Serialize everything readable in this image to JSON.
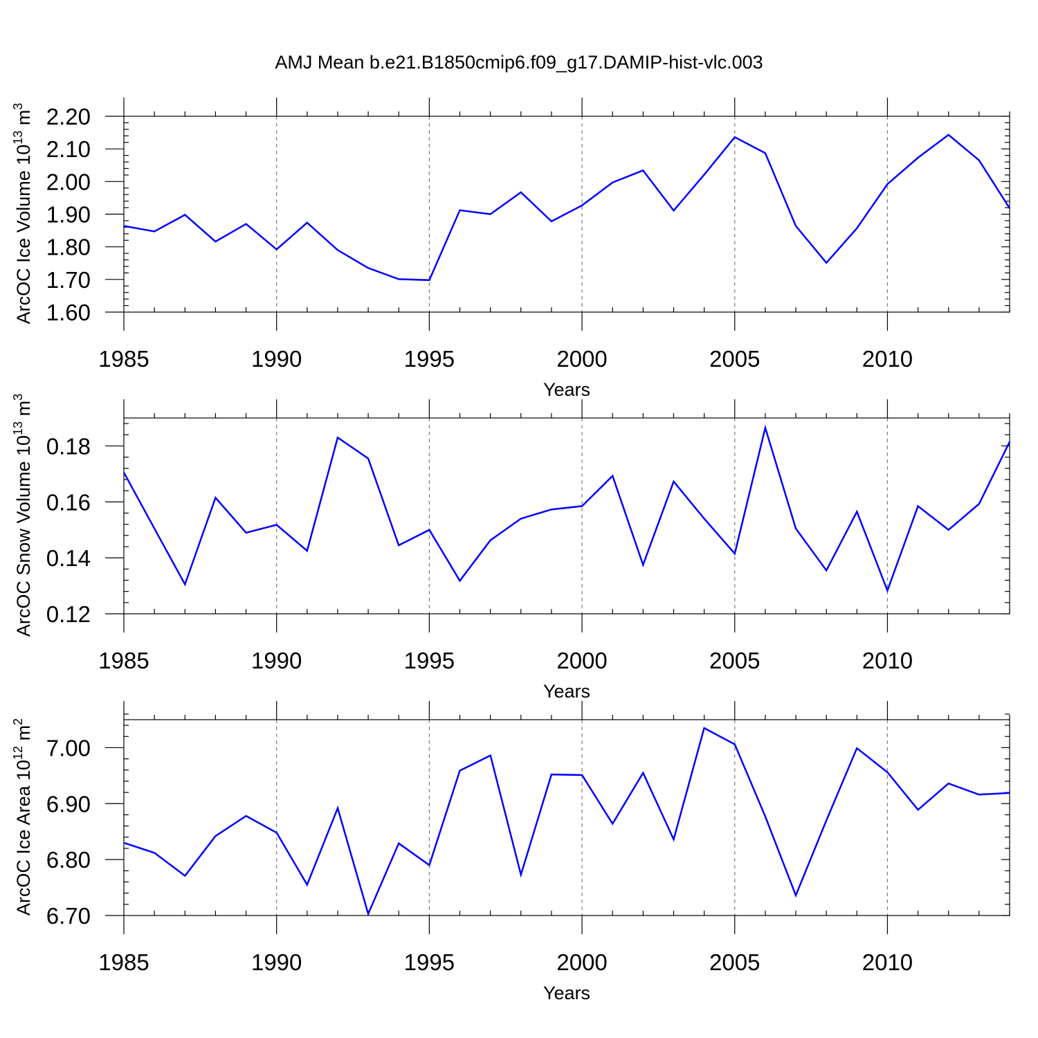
{
  "figure": {
    "title": "AMJ Mean b.e21.B1850cmip6.f09_g17.DAMIP-hist-vlc.003"
  },
  "colors": {
    "line": "#0000ff",
    "frame": "#000000",
    "grid": "#7a7a7a"
  },
  "chart_data": [
    {
      "type": "line",
      "title": "",
      "xlabel": "Years",
      "ylabel": "ArcOC Ice Volume 10",
      "ylabel_exp": "13",
      "ylabel_unit": " m",
      "ylabel_unit_exp": "3",
      "xlim": [
        1985,
        2014
      ],
      "ylim": [
        1.6,
        2.2
      ],
      "xticks": [
        "1985",
        "1990",
        "1995",
        "2000",
        "2005",
        "2010"
      ],
      "xtick_values": [
        1985,
        1990,
        1995,
        2000,
        2005,
        2010
      ],
      "yticks": [
        "1.60",
        "1.70",
        "1.80",
        "1.90",
        "2.00",
        "2.10",
        "2.20"
      ],
      "ytick_values": [
        1.6,
        1.7,
        1.8,
        1.9,
        2.0,
        2.1,
        2.2
      ],
      "grid": "vertical dashed at major x ticks",
      "x": [
        1985,
        1986,
        1987,
        1988,
        1989,
        1990,
        1991,
        1992,
        1993,
        1994,
        1995,
        1996,
        1997,
        1998,
        1999,
        2000,
        2001,
        2002,
        2003,
        2004,
        2005,
        2006,
        2007,
        2008,
        2009,
        2010,
        2011,
        2012,
        2013,
        2014
      ],
      "values": [
        1.864,
        1.847,
        1.898,
        1.816,
        1.87,
        1.792,
        1.874,
        1.79,
        1.735,
        1.701,
        1.698,
        1.912,
        1.9,
        1.967,
        1.878,
        1.927,
        1.997,
        2.034,
        1.911,
        2.021,
        2.136,
        2.087,
        1.864,
        1.751,
        1.857,
        1.992,
        2.073,
        2.143,
        2.065,
        1.918
      ]
    },
    {
      "type": "line",
      "title": "",
      "xlabel": "Years",
      "ylabel": "ArcOC Snow Volume 10",
      "ylabel_exp": "13",
      "ylabel_unit": " m",
      "ylabel_unit_exp": "3",
      "xlim": [
        1985,
        2014
      ],
      "ylim": [
        0.12,
        0.19
      ],
      "xticks": [
        "1985",
        "1990",
        "1995",
        "2000",
        "2005",
        "2010"
      ],
      "xtick_values": [
        1985,
        1990,
        1995,
        2000,
        2005,
        2010
      ],
      "yticks": [
        "0.12",
        "0.14",
        "0.16",
        "0.18"
      ],
      "ytick_values": [
        0.12,
        0.14,
        0.16,
        0.18
      ],
      "grid": "vertical dashed at major x ticks",
      "x": [
        1985,
        1986,
        1987,
        1988,
        1989,
        1990,
        1991,
        1992,
        1993,
        1994,
        1995,
        1996,
        1997,
        1998,
        1999,
        2000,
        2001,
        2002,
        2003,
        2004,
        2005,
        2006,
        2007,
        2008,
        2009,
        2010,
        2011,
        2012,
        2013,
        2014
      ],
      "values": [
        0.1705,
        0.1505,
        0.1305,
        0.1615,
        0.149,
        0.1518,
        0.1425,
        0.183,
        0.1755,
        0.1445,
        0.15,
        0.1318,
        0.1463,
        0.154,
        0.1573,
        0.1585,
        0.1693,
        0.1375,
        0.1673,
        0.154,
        0.1415,
        0.1865,
        0.1505,
        0.1355,
        0.1565,
        0.1283,
        0.1585,
        0.15,
        0.1593,
        0.1815
      ]
    },
    {
      "type": "line",
      "title": "",
      "xlabel": "Years",
      "ylabel": "ArcOC Ice Area 10",
      "ylabel_exp": "12",
      "ylabel_unit": " m",
      "ylabel_unit_exp": "2",
      "xlim": [
        1985,
        2014
      ],
      "ylim": [
        6.7,
        7.05
      ],
      "xticks": [
        "1985",
        "1990",
        "1995",
        "2000",
        "2005",
        "2010"
      ],
      "xtick_values": [
        1985,
        1990,
        1995,
        2000,
        2005,
        2010
      ],
      "yticks": [
        "6.70",
        "6.80",
        "6.90",
        "7.00"
      ],
      "ytick_values": [
        6.7,
        6.8,
        6.9,
        7.0
      ],
      "grid": "vertical dashed at major x ticks",
      "x": [
        1985,
        1986,
        1987,
        1988,
        1989,
        1990,
        1991,
        1992,
        1993,
        1994,
        1995,
        1996,
        1997,
        1998,
        1999,
        2000,
        2001,
        2002,
        2003,
        2004,
        2005,
        2006,
        2007,
        2008,
        2009,
        2010,
        2011,
        2012,
        2013,
        2014
      ],
      "values": [
        6.83,
        6.812,
        6.771,
        6.842,
        6.878,
        6.848,
        6.755,
        6.892,
        6.703,
        6.829,
        6.79,
        6.959,
        6.986,
        6.773,
        6.952,
        6.951,
        6.864,
        6.955,
        6.836,
        7.035,
        7.006,
        6.877,
        6.736,
        6.87,
        6.999,
        6.956,
        6.889,
        6.936,
        6.916,
        6.919
      ]
    }
  ]
}
